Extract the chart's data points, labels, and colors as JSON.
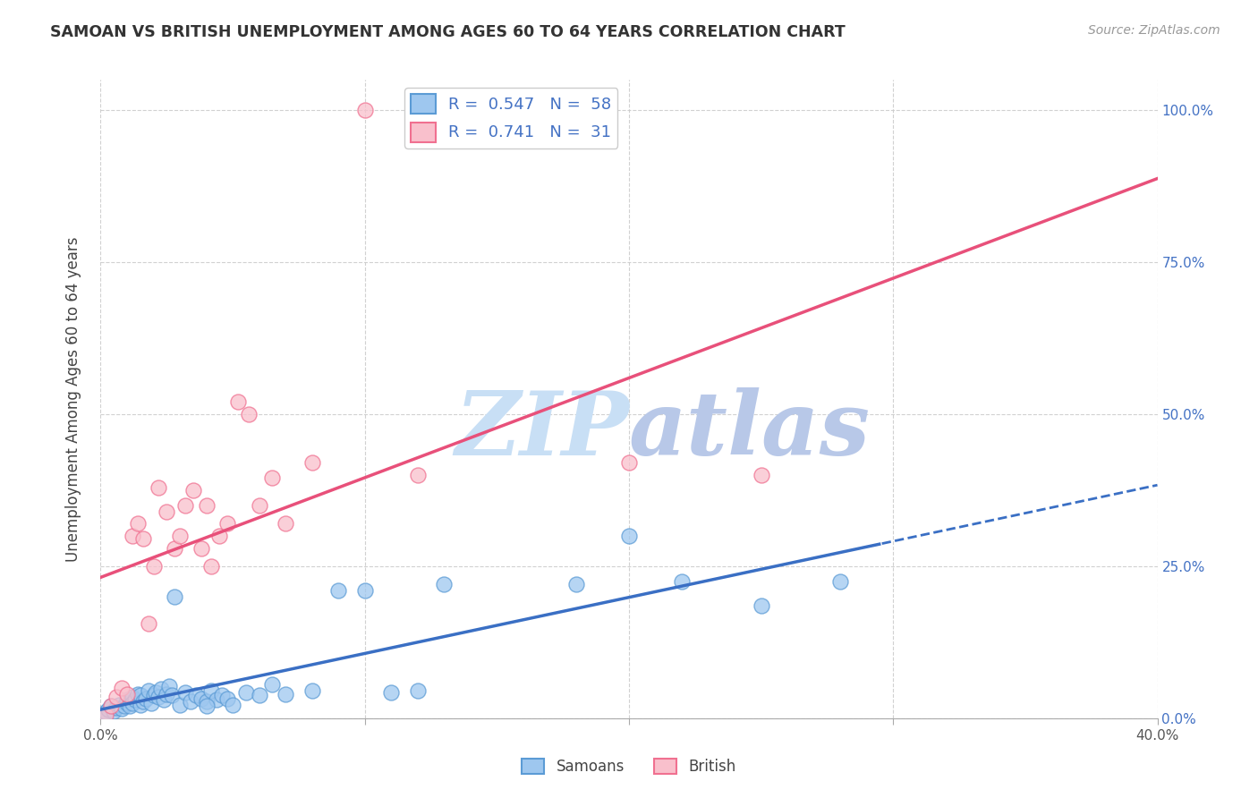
{
  "title": "SAMOAN VS BRITISH UNEMPLOYMENT AMONG AGES 60 TO 64 YEARS CORRELATION CHART",
  "source": "Source: ZipAtlas.com",
  "ylabel": "Unemployment Among Ages 60 to 64 years",
  "xlim": [
    0.0,
    0.4
  ],
  "ylim": [
    0.0,
    1.05
  ],
  "samoans_R": 0.547,
  "samoans_N": 58,
  "british_R": 0.741,
  "british_N": 31,
  "color_samoans_fill": "#9ec7ef",
  "color_samoans_edge": "#5b9bd5",
  "color_british_fill": "#f9c0cc",
  "color_british_edge": "#f07090",
  "color_line_samoans": "#3a6fc4",
  "color_line_british": "#e8507a",
  "watermark_zip": "ZIP",
  "watermark_atlas": "atlas",
  "watermark_color_zip": "#c8dff5",
  "watermark_color_atlas": "#b8c8e8",
  "samoans_x": [
    0.0,
    0.002,
    0.003,
    0.004,
    0.005,
    0.006,
    0.007,
    0.008,
    0.009,
    0.01,
    0.01,
    0.011,
    0.012,
    0.012,
    0.013,
    0.014,
    0.015,
    0.015,
    0.016,
    0.017,
    0.018,
    0.019,
    0.02,
    0.021,
    0.022,
    0.023,
    0.024,
    0.025,
    0.026,
    0.027,
    0.028,
    0.03,
    0.032,
    0.034,
    0.036,
    0.038,
    0.04,
    0.042,
    0.044,
    0.046,
    0.048,
    0.05,
    0.055,
    0.06,
    0.065,
    0.07,
    0.08,
    0.09,
    0.1,
    0.11,
    0.12,
    0.13,
    0.04,
    0.18,
    0.2,
    0.22,
    0.25,
    0.28
  ],
  "samoans_y": [
    0.0,
    0.01,
    0.015,
    0.02,
    0.012,
    0.018,
    0.022,
    0.016,
    0.02,
    0.025,
    0.03,
    0.02,
    0.035,
    0.025,
    0.03,
    0.04,
    0.022,
    0.038,
    0.028,
    0.032,
    0.045,
    0.025,
    0.038,
    0.042,
    0.035,
    0.048,
    0.03,
    0.04,
    0.052,
    0.038,
    0.2,
    0.022,
    0.042,
    0.028,
    0.038,
    0.032,
    0.028,
    0.045,
    0.03,
    0.038,
    0.032,
    0.022,
    0.042,
    0.038,
    0.055,
    0.04,
    0.045,
    0.21,
    0.21,
    0.042,
    0.045,
    0.22,
    0.02,
    0.22,
    0.3,
    0.225,
    0.185,
    0.225
  ],
  "british_x": [
    0.002,
    0.004,
    0.006,
    0.008,
    0.01,
    0.012,
    0.014,
    0.016,
    0.018,
    0.02,
    0.022,
    0.025,
    0.028,
    0.03,
    0.032,
    0.035,
    0.038,
    0.04,
    0.042,
    0.045,
    0.048,
    0.052,
    0.056,
    0.06,
    0.065,
    0.07,
    0.08,
    0.1,
    0.12,
    0.2,
    0.25
  ],
  "british_y": [
    0.005,
    0.02,
    0.035,
    0.05,
    0.04,
    0.3,
    0.32,
    0.295,
    0.155,
    0.25,
    0.38,
    0.34,
    0.28,
    0.3,
    0.35,
    0.375,
    0.28,
    0.35,
    0.25,
    0.3,
    0.32,
    0.52,
    0.5,
    0.35,
    0.395,
    0.32,
    0.42,
    1.0,
    0.4,
    0.42,
    0.4
  ]
}
